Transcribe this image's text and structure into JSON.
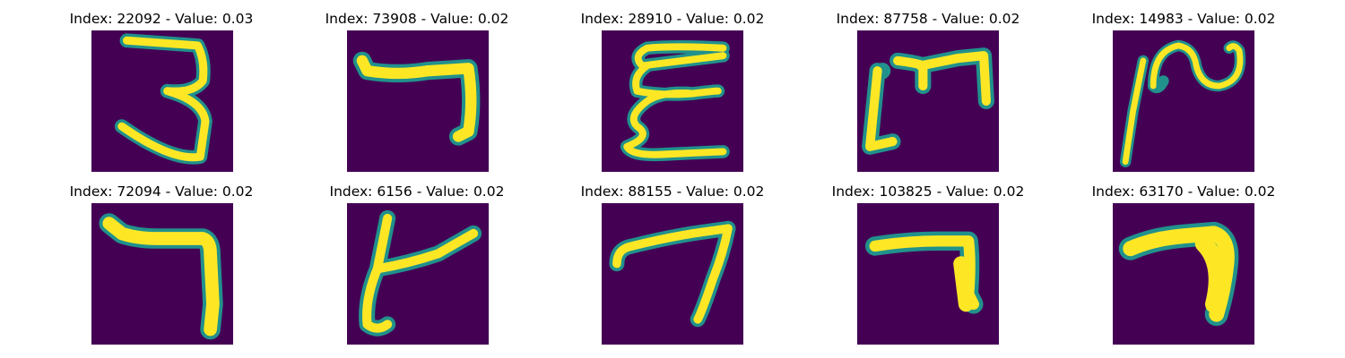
{
  "colors": {
    "background": "#440154",
    "mid": "#21918c",
    "stroke": "#fde725",
    "outer": "#2fa284"
  },
  "panels": [
    {
      "title": "Index: 22092 - Value: 0.03",
      "digit": "3"
    },
    {
      "title": "Index: 73908 - Value: 0.02",
      "digit": "7"
    },
    {
      "title": "Index: 28910 - Value: 0.02",
      "digit": "E"
    },
    {
      "title": "Index: 87758 - Value: 0.02",
      "digit": "m"
    },
    {
      "title": "Index: 14983 - Value: 0.02",
      "digit": "2"
    },
    {
      "title": "Index: 72094 - Value: 0.02",
      "digit": "7"
    },
    {
      "title": "Index: 6156 - Value: 0.02",
      "digit": "4"
    },
    {
      "title": "Index: 88155 - Value: 0.02",
      "digit": "7"
    },
    {
      "title": "Index: 103825 - Value: 0.02",
      "digit": "7"
    },
    {
      "title": "Index: 63170 - Value: 0.02",
      "digit": "7"
    }
  ]
}
